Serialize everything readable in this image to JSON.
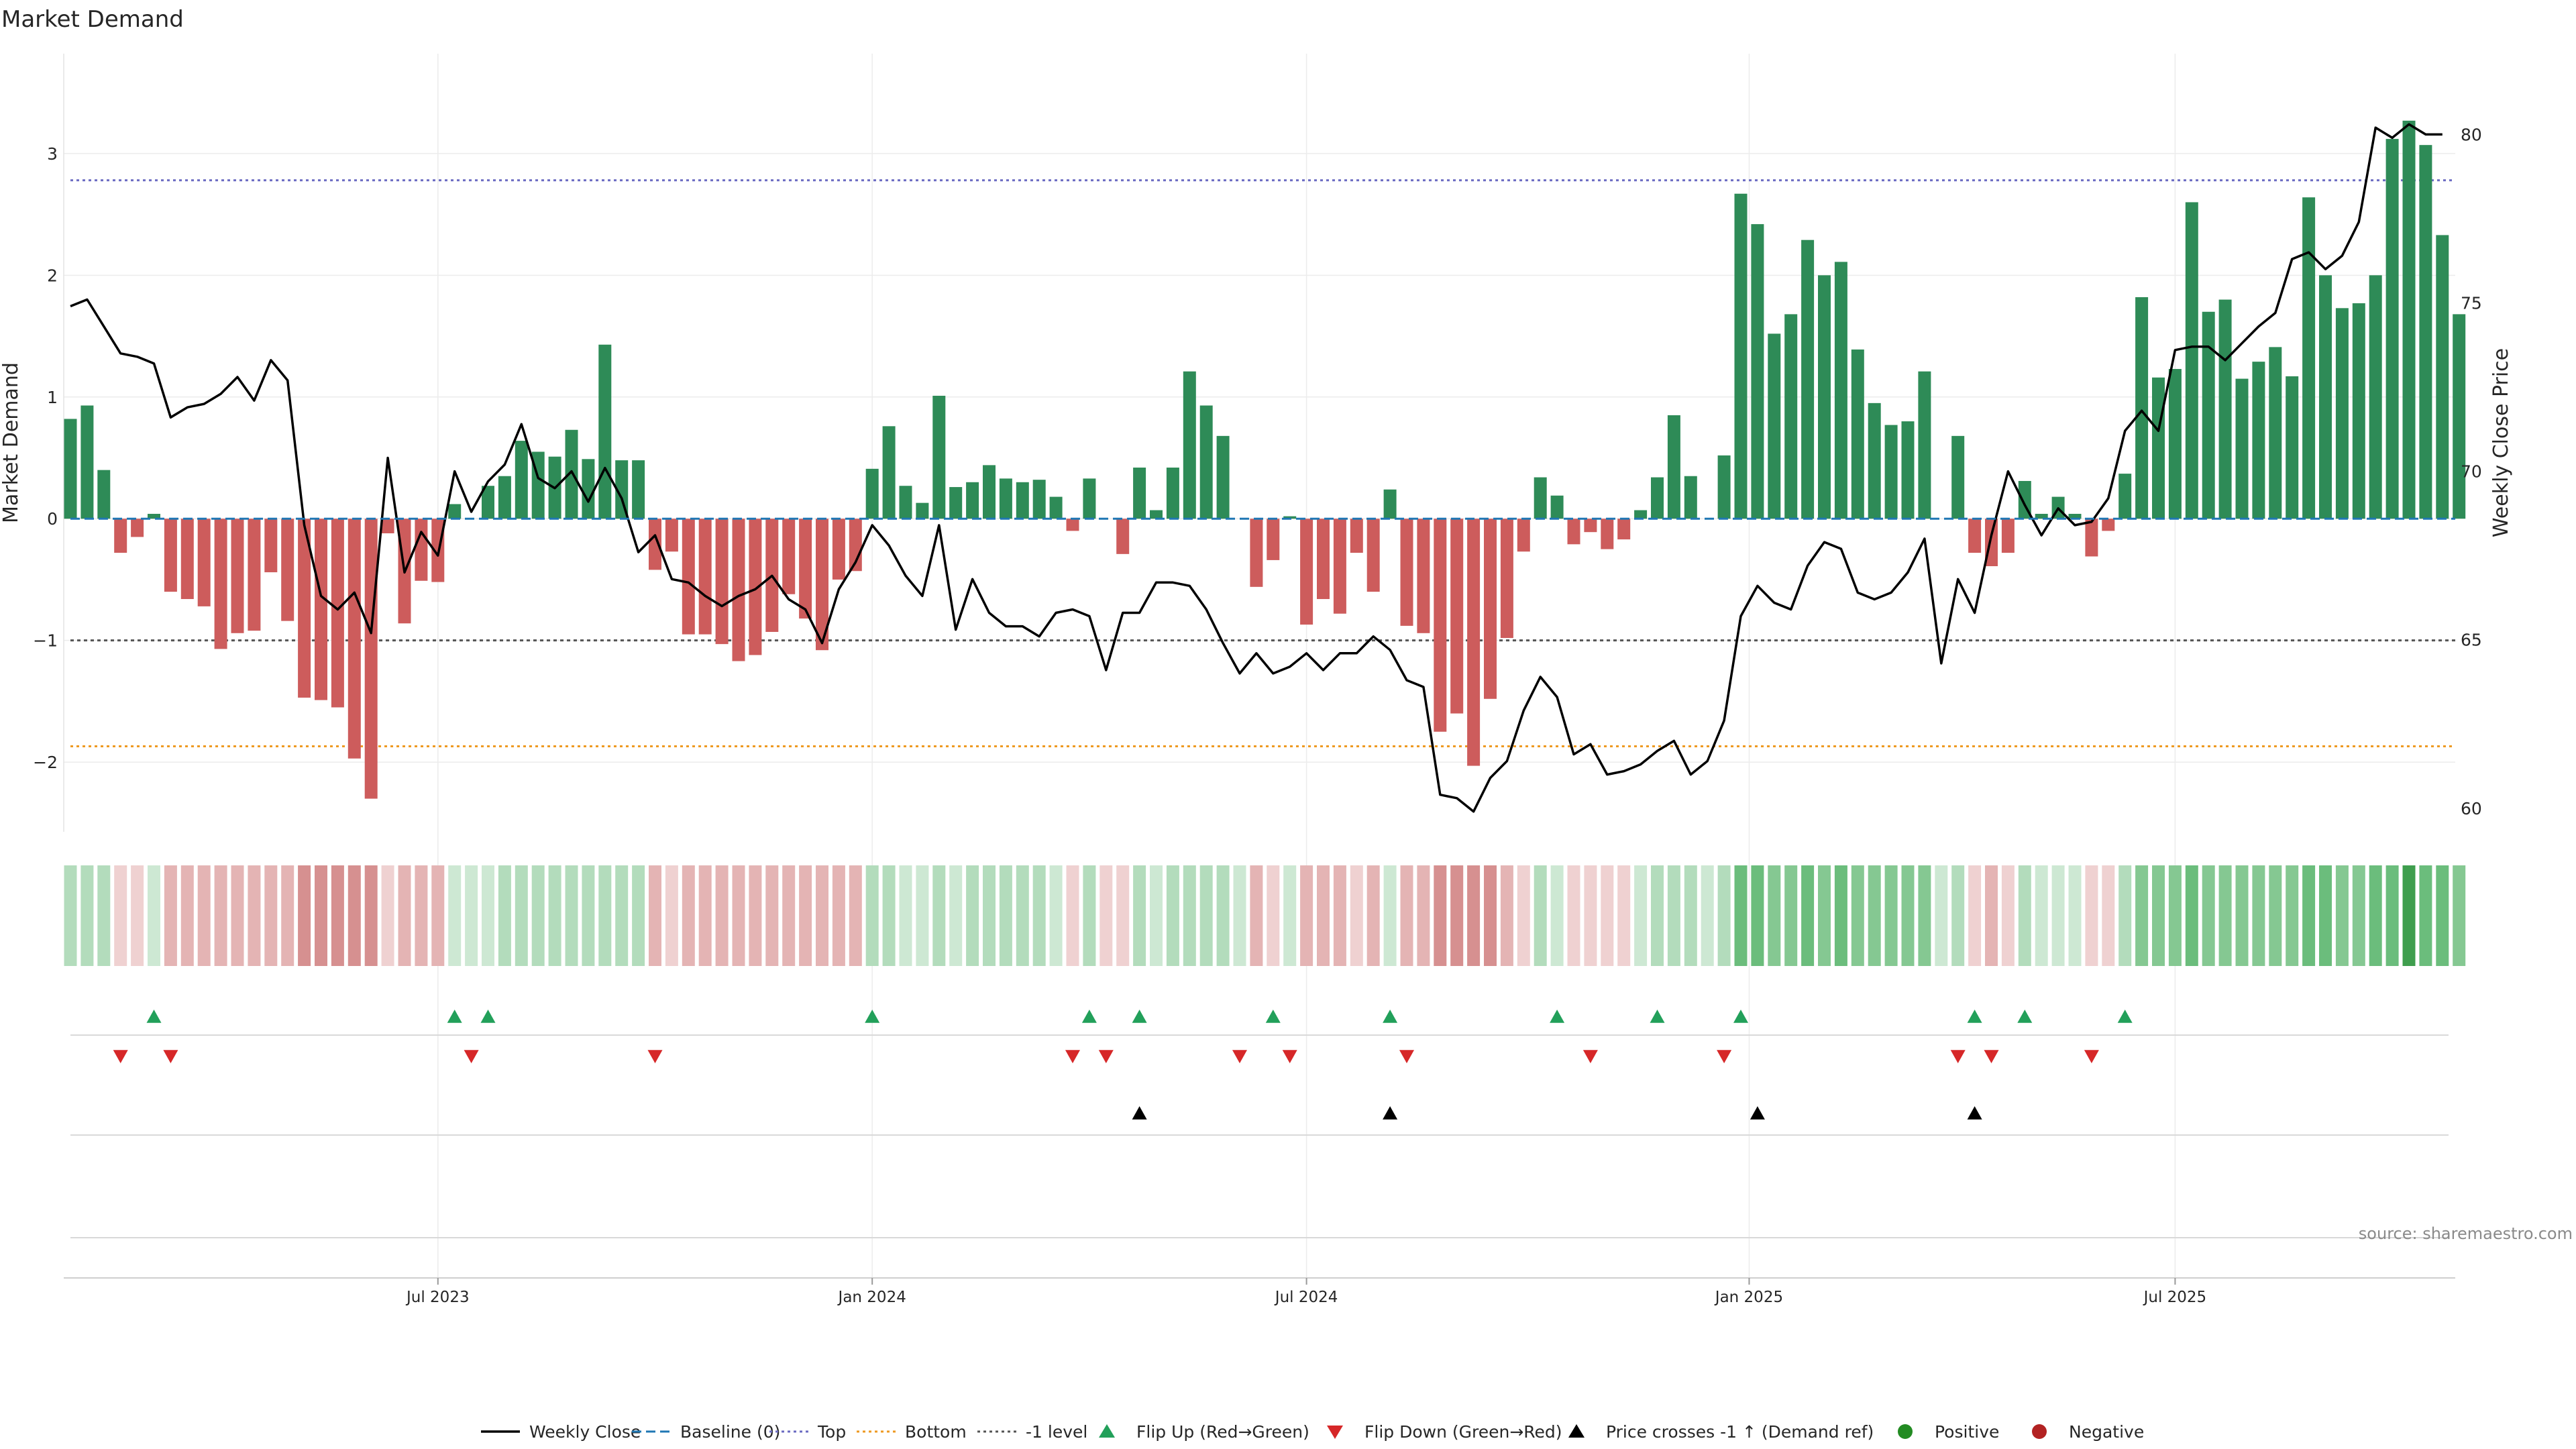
{
  "chart_data": {
    "type": "bar+line",
    "title": "Market Demand",
    "ylabel_left": "Market Demand",
    "ylabel_right": "Weekly Close Price",
    "ylim_left": [
      -2.6,
      3.6
    ],
    "ylim_right": [
      59.2,
      81.6
    ],
    "left_ticks": [
      3,
      2,
      1,
      0,
      -1,
      -2
    ],
    "left_tick_labels": [
      "3",
      "2",
      "1",
      "0",
      "−1",
      "−2"
    ],
    "right_ticks": [
      80,
      75,
      70,
      65,
      60
    ],
    "right_tick_labels": [
      "80",
      "75",
      "70",
      "65",
      "60"
    ],
    "x_ticks": [
      {
        "label": "Jul 2023",
        "week": 22
      },
      {
        "label": "Jan 2024",
        "week": 48
      },
      {
        "label": "Jul 2024",
        "week": 74
      },
      {
        "label": "Jan 2025",
        "week": 100.5
      },
      {
        "label": "Jul 2025",
        "week": 126
      }
    ],
    "reference_lines": {
      "baseline": 0,
      "top": 2.78,
      "bottom": -1.87,
      "minus_one": -1
    },
    "demand": [
      0.82,
      0.93,
      0.4,
      -0.28,
      -0.15,
      0.04,
      -0.6,
      -0.66,
      -0.72,
      -1.07,
      -0.94,
      -0.92,
      -0.44,
      -0.84,
      -1.47,
      -1.49,
      -1.55,
      -1.97,
      -2.3,
      -0.12,
      -0.86,
      -0.51,
      -0.52,
      0.12,
      0.0,
      0.27,
      0.35,
      0.64,
      0.55,
      0.51,
      0.73,
      0.49,
      1.43,
      0.48,
      0.48,
      -0.42,
      -0.27,
      -0.95,
      -0.95,
      -1.03,
      -1.17,
      -1.12,
      -0.93,
      -0.62,
      -0.82,
      -1.08,
      -0.5,
      -0.43,
      0.41,
      0.76,
      0.27,
      0.13,
      1.01,
      0.26,
      0.3,
      0.44,
      0.33,
      0.3,
      0.32,
      0.18,
      -0.1,
      0.33,
      0.0,
      -0.29,
      0.42,
      0.07,
      0.42,
      1.21,
      0.93,
      0.68,
      0.0,
      -0.56,
      -0.34,
      0.02,
      -0.87,
      -0.66,
      -0.78,
      -0.28,
      -0.6,
      0.24,
      -0.88,
      -0.94,
      -1.75,
      -1.6,
      -2.03,
      -1.48,
      -0.98,
      -0.27,
      0.34,
      0.19,
      -0.21,
      -0.11,
      -0.25,
      -0.17,
      0.07,
      0.34,
      0.85,
      0.35,
      0.0,
      0.52,
      2.67,
      2.42,
      1.52,
      1.68,
      2.29,
      2.0,
      2.11,
      1.39,
      0.95,
      0.77,
      0.8,
      1.21,
      0.0,
      0.68,
      -0.28,
      -0.39,
      -0.28,
      0.31,
      0.04,
      0.18,
      0.04,
      -0.31,
      -0.1,
      0.37,
      1.82,
      1.16,
      1.23,
      2.6,
      1.7,
      1.8,
      1.15,
      1.29,
      1.41,
      1.17,
      2.64,
      2.0,
      1.73,
      1.77,
      2.0,
      3.12,
      3.27,
      3.07,
      2.33,
      1.68
    ],
    "close": [
      74.9,
      75.1,
      74.3,
      73.5,
      73.4,
      73.2,
      71.6,
      71.9,
      72.0,
      72.3,
      72.8,
      72.1,
      73.3,
      72.7,
      68.4,
      66.3,
      65.9,
      66.4,
      65.2,
      70.4,
      67.0,
      68.2,
      67.5,
      70.0,
      68.8,
      69.7,
      70.2,
      71.4,
      69.8,
      69.5,
      70.0,
      69.1,
      70.1,
      69.2,
      67.6,
      68.1,
      66.8,
      66.7,
      66.3,
      66.0,
      66.3,
      66.5,
      66.9,
      66.2,
      65.9,
      64.9,
      66.5,
      67.3,
      68.4,
      67.8,
      66.9,
      66.3,
      68.4,
      65.3,
      66.8,
      65.8,
      65.4,
      65.4,
      65.1,
      65.8,
      65.9,
      65.7,
      64.1,
      65.8,
      65.8,
      66.7,
      66.7,
      66.6,
      65.9,
      64.9,
      64.0,
      64.6,
      64.0,
      64.2,
      64.6,
      64.1,
      64.6,
      64.6,
      65.1,
      64.7,
      63.8,
      63.6,
      60.4,
      60.3,
      59.9,
      60.9,
      61.4,
      62.9,
      63.9,
      63.3,
      61.6,
      61.9,
      61.0,
      61.1,
      61.3,
      61.7,
      62.0,
      61.0,
      61.4,
      62.6,
      65.7,
      66.6,
      66.1,
      65.9,
      67.2,
      67.9,
      67.7,
      66.4,
      66.2,
      66.4,
      67.0,
      68.0,
      64.3,
      66.8,
      65.8,
      68.1,
      70.0,
      69.0,
      68.1,
      68.9,
      68.4,
      68.5,
      69.2,
      71.2,
      71.8,
      71.2,
      73.6,
      73.7,
      73.7,
      73.3,
      73.8,
      74.3,
      74.7,
      76.3,
      76.5,
      76.0,
      76.4,
      77.4,
      80.2,
      79.9,
      80.3,
      80.0,
      80.0
    ],
    "strip_classes": [
      1,
      1,
      1,
      -1,
      -1,
      1,
      -1,
      -1,
      -1,
      -1,
      -1,
      -1,
      -1,
      -1,
      -2,
      -2,
      -2,
      -2,
      -2,
      -1,
      -1,
      -1,
      -1,
      1,
      1,
      1,
      1,
      1,
      1,
      1,
      1,
      1,
      1,
      1,
      1,
      -1,
      -1,
      -1,
      -1,
      -1,
      -1,
      -1,
      -1,
      -1,
      -1,
      -1,
      -1,
      -1,
      1,
      1,
      1,
      1,
      1,
      1,
      1,
      1,
      1,
      1,
      1,
      1,
      -1,
      1,
      -1,
      -1,
      1,
      1,
      1,
      1,
      1,
      1,
      1,
      -1,
      -1,
      1,
      -1,
      -1,
      -1,
      -1,
      -1,
      1,
      -1,
      -1,
      -2,
      -2,
      -2,
      -2,
      -1,
      -1,
      1,
      1,
      -1,
      -1,
      -1,
      -1,
      1,
      1,
      1,
      1,
      1,
      1,
      3,
      3,
      2,
      2,
      3,
      2,
      3,
      2,
      2,
      2,
      2,
      2,
      1,
      1,
      -1,
      -1,
      -1,
      1,
      1,
      1,
      1,
      -1,
      -1,
      1,
      2,
      2,
      2,
      3,
      2,
      2,
      2,
      2,
      2,
      2,
      3,
      3,
      2,
      2,
      3,
      3,
      4,
      3,
      3,
      2
    ],
    "flip_up_weeks": [
      5,
      23,
      25,
      48,
      61,
      64,
      72,
      79,
      89,
      95,
      100,
      114,
      117,
      123
    ],
    "flip_down_weeks": [
      3,
      6,
      24,
      35,
      60,
      62,
      70,
      73,
      80,
      91,
      99,
      113,
      115,
      121
    ],
    "price_cross_weeks": [
      64,
      79,
      101,
      114
    ],
    "colors": {
      "bar_positive": "#2e8b57",
      "bar_negative": "#cd5c5c",
      "close_line": "#000000",
      "baseline": "#1f77b4",
      "top_line": "#6b6bc2",
      "bottom_line": "#ee9a22",
      "minus_one_line": "#555555",
      "flip_up": "#22a05a",
      "flip_down": "#d62728",
      "price_cross": "#000000",
      "positive_dot": "#228b22",
      "negative_dot": "#b22222"
    },
    "source": "source: sharemaestro.com",
    "legend": [
      {
        "label": "Weekly Close",
        "kind": "line",
        "color": "#000000"
      },
      {
        "label": "Baseline (0)",
        "kind": "dash",
        "color": "#1f77b4"
      },
      {
        "label": "Top",
        "kind": "dot",
        "color": "#6b6bc2"
      },
      {
        "label": "Bottom",
        "kind": "dot",
        "color": "#ee9a22"
      },
      {
        "label": "-1 level",
        "kind": "dot",
        "color": "#555555"
      },
      {
        "label": "Flip Up (Red→Green)",
        "kind": "tri-up",
        "color": "#22a05a"
      },
      {
        "label": "Flip Down (Green→Red)",
        "kind": "tri-down",
        "color": "#d62728"
      },
      {
        "label": "Price crosses -1 ↑ (Demand ref)",
        "kind": "tri-up",
        "color": "#000000"
      },
      {
        "label": "Positive",
        "kind": "circle",
        "color": "#228b22"
      },
      {
        "label": "Negative",
        "kind": "circle",
        "color": "#b22222"
      }
    ]
  }
}
